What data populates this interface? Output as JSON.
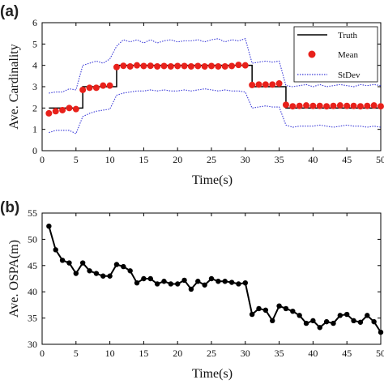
{
  "chart_data": [
    {
      "panel_label": "(a)",
      "type": "line",
      "title": "",
      "xlabel": "Time(s)",
      "ylabel": "Ave. Cardinality",
      "xlim": [
        0,
        50
      ],
      "ylim": [
        0,
        6
      ],
      "xticks": [
        0,
        5,
        10,
        15,
        20,
        25,
        30,
        35,
        40,
        45,
        50
      ],
      "yticks": [
        0,
        1,
        2,
        3,
        4,
        5,
        6
      ],
      "legend_position": "top-right",
      "series": [
        {
          "name": "Truth",
          "style": "solid-line",
          "color": "#000000",
          "x": [
            1,
            2,
            3,
            4,
            5,
            6,
            7,
            8,
            9,
            10,
            11,
            12,
            13,
            14,
            15,
            16,
            17,
            18,
            19,
            20,
            21,
            22,
            23,
            24,
            25,
            26,
            27,
            28,
            29,
            30,
            31,
            32,
            33,
            34,
            35,
            36,
            37,
            38,
            39,
            40,
            41,
            42,
            43,
            44,
            45,
            46,
            47,
            48,
            49,
            50
          ],
          "y": [
            2,
            2,
            2,
            2,
            2,
            3,
            3,
            3,
            3,
            3,
            4,
            4,
            4,
            4,
            4,
            4,
            4,
            4,
            4,
            4,
            4,
            4,
            4,
            4,
            4,
            4,
            4,
            4,
            4,
            4,
            3,
            3,
            3,
            3,
            3,
            2,
            2,
            2,
            2,
            2,
            2,
            2,
            2,
            2,
            2,
            2,
            2,
            2,
            2,
            2
          ]
        },
        {
          "name": "Mean",
          "style": "markers",
          "color": "#e8211b",
          "x": [
            1,
            2,
            3,
            4,
            5,
            6,
            7,
            8,
            9,
            10,
            11,
            12,
            13,
            14,
            15,
            16,
            17,
            18,
            19,
            20,
            21,
            22,
            23,
            24,
            25,
            26,
            27,
            28,
            29,
            30,
            31,
            32,
            33,
            34,
            35,
            36,
            37,
            38,
            39,
            40,
            41,
            42,
            43,
            44,
            45,
            46,
            47,
            48,
            49,
            50
          ],
          "y": [
            1.75,
            1.85,
            1.9,
            2.0,
            1.95,
            2.85,
            2.95,
            2.95,
            3.05,
            3.05,
            3.92,
            3.98,
            3.95,
            4.0,
            3.97,
            3.98,
            3.95,
            3.97,
            3.95,
            3.97,
            3.97,
            3.95,
            3.97,
            3.95,
            3.97,
            3.95,
            3.95,
            3.97,
            4.02,
            4.0,
            3.08,
            3.1,
            3.1,
            3.1,
            3.15,
            2.15,
            2.08,
            2.1,
            2.12,
            2.1,
            2.1,
            2.08,
            2.1,
            2.12,
            2.1,
            2.1,
            2.08,
            2.1,
            2.12,
            2.08
          ]
        },
        {
          "name": "StDev",
          "style": "dotted-line",
          "color": "#3c3cd8",
          "x": [
            1,
            2,
            3,
            4,
            5,
            6,
            7,
            8,
            9,
            10,
            11,
            12,
            13,
            14,
            15,
            16,
            17,
            18,
            19,
            20,
            21,
            22,
            23,
            24,
            25,
            26,
            27,
            28,
            29,
            30,
            31,
            32,
            33,
            34,
            35,
            36,
            37,
            38,
            39,
            40,
            41,
            42,
            43,
            44,
            45,
            46,
            47,
            48,
            49,
            50
          ],
          "upper": [
            2.7,
            2.75,
            2.75,
            2.9,
            2.85,
            4.0,
            4.1,
            4.2,
            4.1,
            4.3,
            4.9,
            5.2,
            5.1,
            5.2,
            5.05,
            5.2,
            5.05,
            5.15,
            5.2,
            5.1,
            5.15,
            5.15,
            5.2,
            5.1,
            5.2,
            5.25,
            5.1,
            5.2,
            5.15,
            5.25,
            4.1,
            4.15,
            4.2,
            4.15,
            4.2,
            3.05,
            3.0,
            3.05,
            3.1,
            3.0,
            3.1,
            3.0,
            3.05,
            3.1,
            3.05,
            3.0,
            3.1,
            3.05,
            3.1,
            3.05
          ],
          "lower": [
            0.85,
            0.95,
            0.95,
            0.95,
            0.8,
            1.6,
            1.75,
            1.85,
            1.9,
            1.95,
            2.6,
            2.7,
            2.75,
            2.8,
            2.8,
            2.85,
            2.8,
            2.85,
            2.8,
            2.8,
            2.85,
            2.8,
            2.85,
            2.9,
            2.85,
            2.8,
            2.85,
            2.8,
            2.8,
            2.75,
            2.0,
            2.05,
            2.1,
            2.05,
            2.05,
            1.2,
            1.1,
            1.15,
            1.15,
            1.15,
            1.2,
            1.15,
            1.1,
            1.15,
            1.2,
            1.15,
            1.15,
            1.1,
            1.15,
            1.1
          ]
        }
      ]
    },
    {
      "panel_label": "(b)",
      "type": "line",
      "title": "",
      "xlabel": "Time(s)",
      "ylabel": "Ave. OSPA(m)",
      "xlim": [
        0,
        50
      ],
      "ylim": [
        30,
        55
      ],
      "xticks": [
        0,
        5,
        10,
        15,
        20,
        25,
        30,
        35,
        40,
        45,
        50
      ],
      "yticks": [
        30,
        35,
        40,
        45,
        50,
        55
      ],
      "series": [
        {
          "style": "line-markers",
          "color": "#000000",
          "x": [
            1,
            2,
            3,
            4,
            5,
            6,
            7,
            8,
            9,
            10,
            11,
            12,
            13,
            14,
            15,
            16,
            17,
            18,
            19,
            20,
            21,
            22,
            23,
            24,
            25,
            26,
            27,
            28,
            29,
            30,
            31,
            32,
            33,
            34,
            35,
            36,
            37,
            38,
            39,
            40,
            41,
            42,
            43,
            44,
            45,
            46,
            47,
            48,
            49,
            50
          ],
          "y": [
            52.5,
            48.0,
            46.0,
            45.5,
            43.5,
            45.5,
            44.0,
            43.5,
            43.0,
            43.0,
            45.2,
            44.8,
            44.0,
            41.7,
            42.5,
            42.5,
            41.5,
            42.0,
            41.5,
            41.5,
            42.2,
            40.5,
            42.0,
            41.3,
            42.5,
            42.0,
            42.0,
            41.8,
            41.5,
            41.7,
            35.7,
            36.8,
            36.5,
            34.5,
            37.3,
            36.8,
            36.3,
            35.5,
            34.0,
            34.5,
            33.2,
            34.3,
            34.0,
            35.5,
            35.7,
            34.5,
            34.2,
            35.5,
            34.3,
            32.3
          ]
        }
      ]
    }
  ]
}
